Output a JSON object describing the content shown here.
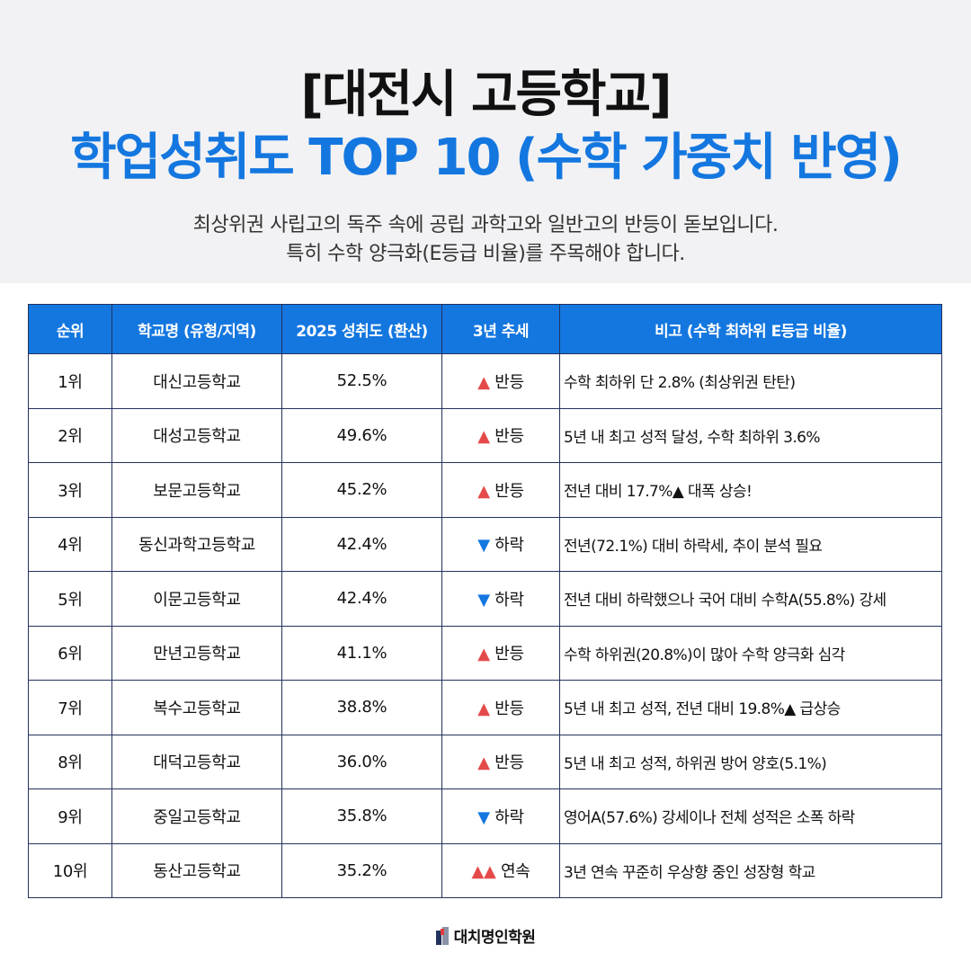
{
  "header": {
    "title_line1": "[대전시 고등학교]",
    "title_line2": "학업성취도 TOP 10 (수학 가중치 반영)",
    "subtitle_line1": "최상위권 사립고의 독주 속에 공립 과학고와 일반고의 반등이 돋보입니다.",
    "subtitle_line2": "특히 수학 양극화(E등급 비율)를 주목해야 합니다."
  },
  "table": {
    "columns": [
      "순위",
      "학교명 (유형/지역)",
      "2025 성취도 (환산)",
      "3년 추세",
      "비고 (수학 최하위 E등급 비율)"
    ],
    "rows": [
      {
        "rank": "1위",
        "school": "대신고등학교",
        "score": "52.5%",
        "trend_arrow": "▲",
        "trend_dir": "up",
        "trend": "반등",
        "note": "수학 최하위 단 2.8% (최상위권 탄탄)"
      },
      {
        "rank": "2위",
        "school": "대성고등학교",
        "score": "49.6%",
        "trend_arrow": "▲",
        "trend_dir": "up",
        "trend": "반등",
        "note": "5년 내 최고 성적 달성, 수학 최하위 3.6%"
      },
      {
        "rank": "3위",
        "school": "보문고등학교",
        "score": "45.2%",
        "trend_arrow": "▲",
        "trend_dir": "up",
        "trend": "반등",
        "note": "전년 대비 17.7%▲ 대폭 상승!"
      },
      {
        "rank": "4위",
        "school": "동신과학고등학교",
        "score": "42.4%",
        "trend_arrow": "▼",
        "trend_dir": "down",
        "trend": "하락",
        "note": "전년(72.1%) 대비 하락세, 추이 분석 필요"
      },
      {
        "rank": "5위",
        "school": "이문고등학교",
        "score": "42.4%",
        "trend_arrow": "▼",
        "trend_dir": "down",
        "trend": "하락",
        "note": "전년 대비 하락했으나 국어 대비 수학A(55.8%) 강세"
      },
      {
        "rank": "6위",
        "school": "만년고등학교",
        "score": "41.1%",
        "trend_arrow": "▲",
        "trend_dir": "up",
        "trend": "반등",
        "note": "수학 하위권(20.8%)이 많아 수학 양극화 심각"
      },
      {
        "rank": "7위",
        "school": "복수고등학교",
        "score": "38.8%",
        "trend_arrow": "▲",
        "trend_dir": "up",
        "trend": "반등",
        "note": "5년 내 최고 성적, 전년 대비 19.8%▲ 급상승"
      },
      {
        "rank": "8위",
        "school": "대덕고등학교",
        "score": "36.0%",
        "trend_arrow": "▲",
        "trend_dir": "up",
        "trend": "반등",
        "note": "5년 내 최고 성적, 하위권 방어 양호(5.1%)"
      },
      {
        "rank": "9위",
        "school": "중일고등학교",
        "score": "35.8%",
        "trend_arrow": "▼",
        "trend_dir": "down",
        "trend": "하락",
        "note": "영어A(57.6%) 강세이나 전체 성적은 소폭 하락"
      },
      {
        "rank": "10위",
        "school": "동산고등학교",
        "score": "35.2%",
        "trend_arrow": "▲▲",
        "trend_dir": "up",
        "trend": "연속",
        "note": "3년 연속 꾸준히 우상향 중인 성장형 학교"
      }
    ]
  },
  "footer": {
    "brand": "대치명인학원",
    "logo_icon": "academy-logo-icon"
  },
  "colors": {
    "accent": "#1477e0",
    "up": "#e54a4a",
    "down": "#1477e0",
    "border": "#23325c",
    "header_bg": "#f2f2f4"
  }
}
